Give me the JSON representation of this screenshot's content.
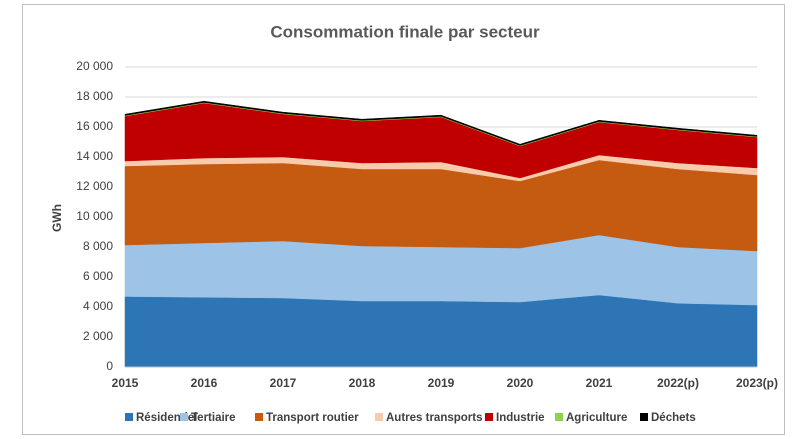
{
  "chart_data": {
    "type": "stacked_area",
    "title": "Consommation finale par secteur",
    "y_label": "GWh",
    "categories": [
      "2015",
      "2016",
      "2017",
      "2018",
      "2019",
      "2020",
      "2021",
      "2022(p)",
      "2023(p)"
    ],
    "series": [
      {
        "name": "Résidentiel",
        "color": "#2e75b6",
        "values": [
          4700,
          4650,
          4600,
          4400,
          4400,
          4330,
          4800,
          4250,
          4130
        ]
      },
      {
        "name": "Tertiaire",
        "color": "#9dc3e6",
        "values": [
          3430,
          3620,
          3800,
          3670,
          3600,
          3600,
          4000,
          3750,
          3600
        ]
      },
      {
        "name": "Transport routier",
        "color": "#c55a11",
        "values": [
          5270,
          5260,
          5200,
          5130,
          5200,
          4470,
          5000,
          5200,
          5070
        ]
      },
      {
        "name": "Autres transports",
        "color": "#f8cbad",
        "values": [
          330,
          400,
          400,
          400,
          470,
          200,
          330,
          400,
          470
        ]
      },
      {
        "name": "Industrie",
        "color": "#c00000",
        "values": [
          3000,
          3670,
          2870,
          2800,
          3000,
          2130,
          2200,
          2200,
          2060
        ]
      },
      {
        "name": "Agriculture",
        "color": "#92d050",
        "values": [
          40,
          40,
          40,
          40,
          40,
          40,
          40,
          40,
          40
        ]
      },
      {
        "name": "Déchets",
        "color": "#000000",
        "values": [
          80,
          80,
          80,
          80,
          80,
          80,
          80,
          80,
          80
        ]
      }
    ],
    "ylim": [
      0,
      20000
    ],
    "yticks": [
      0,
      {
        "value": 2000,
        "label": "2 000"
      },
      {
        "value": 4000,
        "label": "4 000"
      },
      {
        "value": 6000,
        "label": "6 000"
      },
      {
        "value": 8000,
        "label": "8 000"
      },
      {
        "value": 10000,
        "label": "10 000"
      },
      {
        "value": 12000,
        "label": "12 000"
      },
      {
        "value": 14000,
        "label": "14 000"
      },
      {
        "value": 16000,
        "label": "16 000"
      },
      {
        "value": 18000,
        "label": "18 000"
      },
      {
        "value": 20000,
        "label": "20 000"
      }
    ],
    "grid": true,
    "legend": "bottom"
  }
}
